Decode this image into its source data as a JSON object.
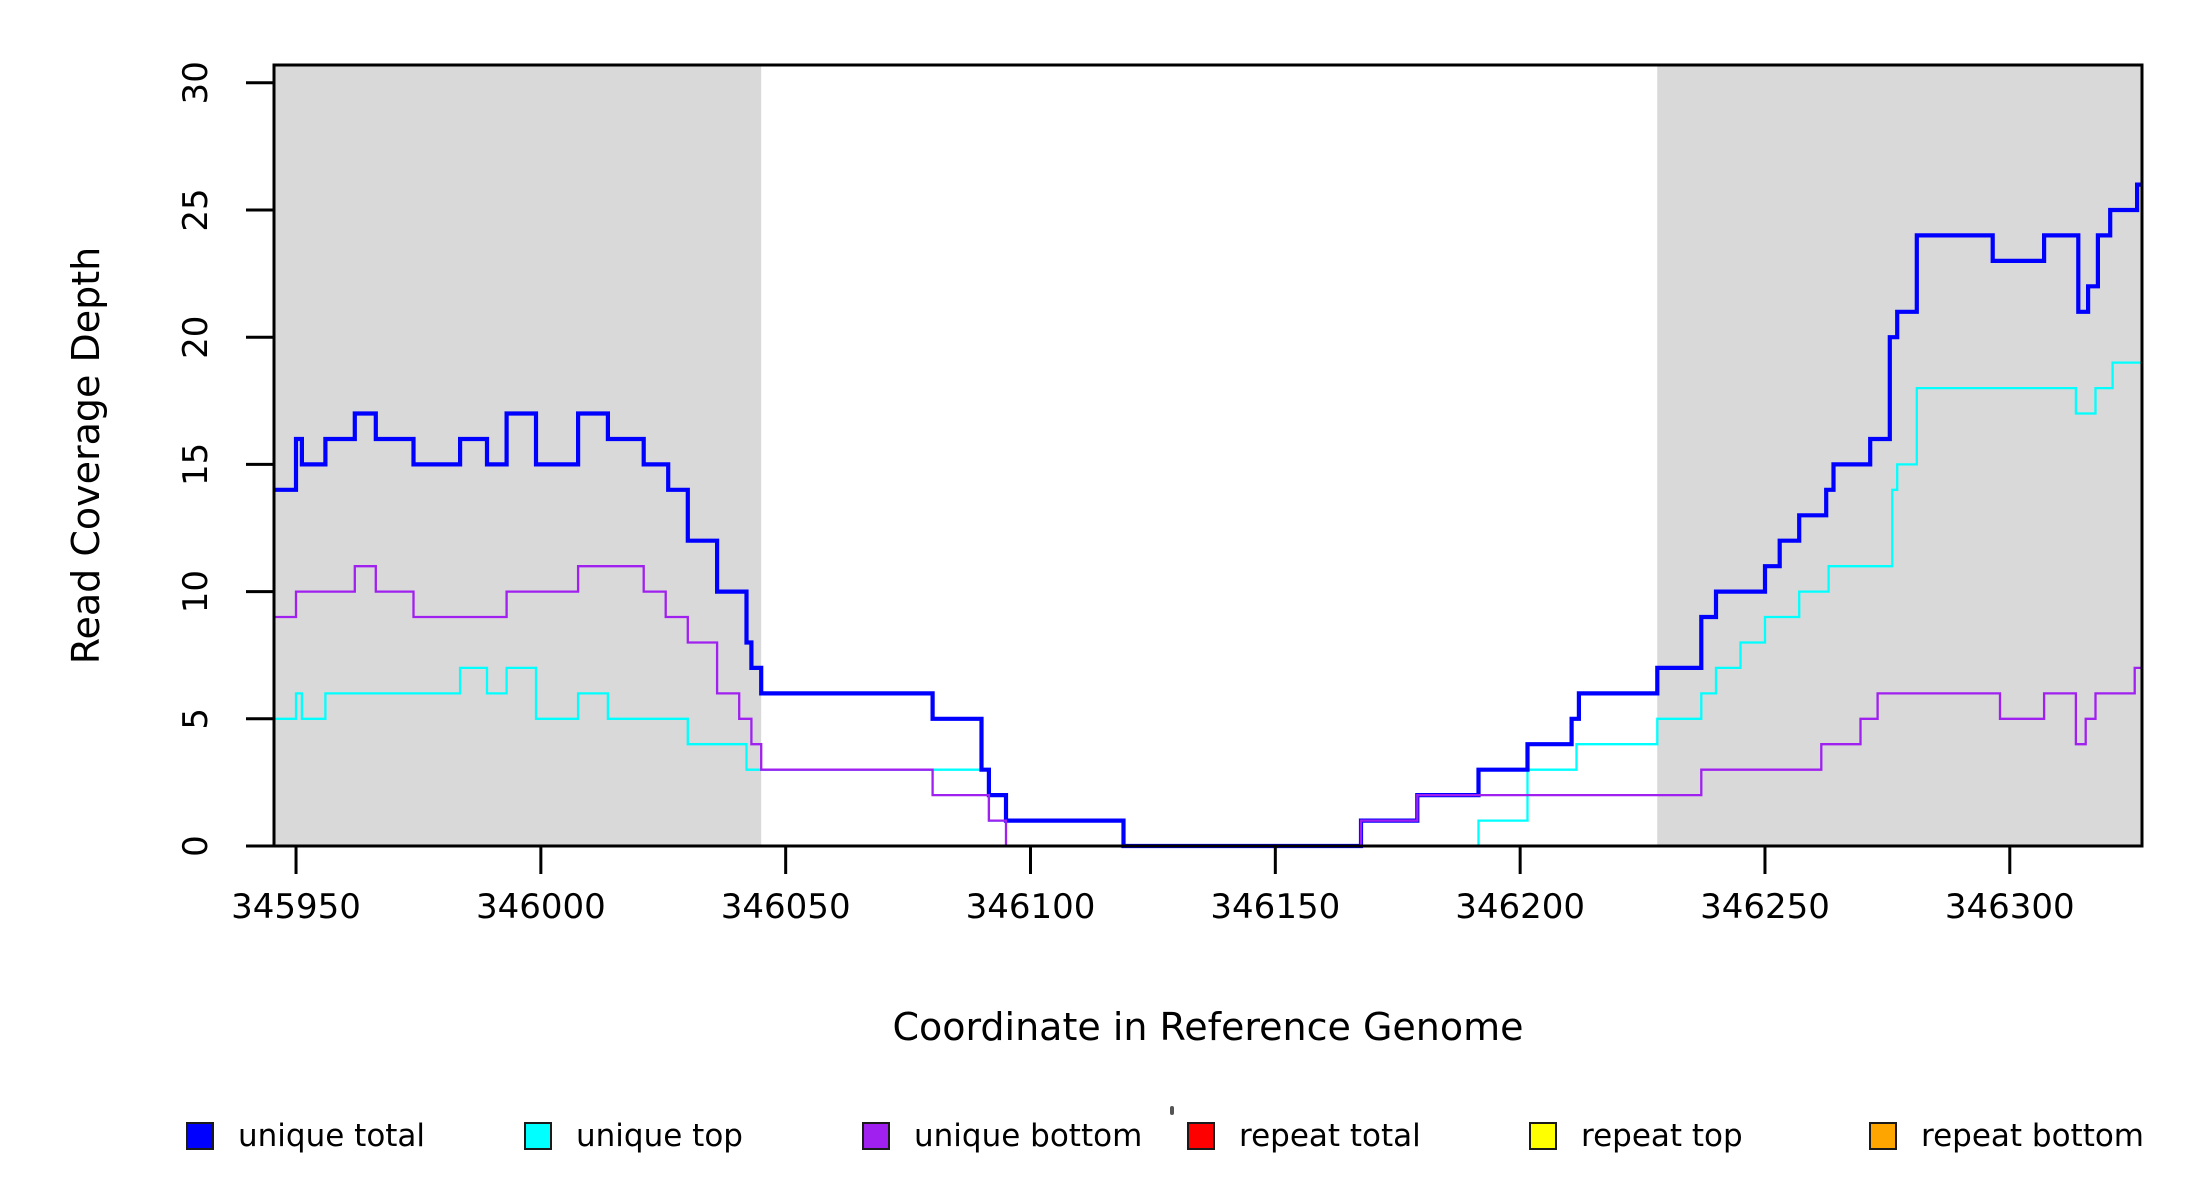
{
  "chart_data": {
    "type": "line",
    "subtype": "step",
    "title": "",
    "xlabel": "Coordinate in Reference Genome",
    "ylabel": "Read Coverage Depth",
    "xlim": [
      345945.5,
      346327
    ],
    "ylim": [
      0,
      30.7
    ],
    "xticks": [
      345950,
      346000,
      346050,
      346100,
      346150,
      346200,
      346250,
      346300
    ],
    "yticks": [
      0,
      5,
      10,
      15,
      20,
      25,
      30
    ],
    "grid": false,
    "background_color": "#ffffff",
    "axis_color": "#000000",
    "shaded_region_color": "#d9d9d9",
    "shaded_regions": [
      {
        "x0": 345945.5,
        "x1": 346045
      },
      {
        "x0": 346228,
        "x1": 346327
      }
    ],
    "draw_order": [
      "repeat total",
      "repeat top",
      "repeat bottom",
      "unique top",
      "unique total",
      "unique bottom"
    ],
    "series": [
      {
        "name": "unique total",
        "color": "#0000ff",
        "width": 4.2,
        "steps": [
          [
            345945.5,
            14
          ],
          [
            345950,
            16
          ],
          [
            345951.2,
            15
          ],
          [
            345956,
            16
          ],
          [
            345962,
            17
          ],
          [
            345966.3,
            16
          ],
          [
            345974,
            15
          ],
          [
            345983.5,
            16
          ],
          [
            345989,
            15
          ],
          [
            345993,
            17
          ],
          [
            345999,
            15
          ],
          [
            346007.6,
            17
          ],
          [
            346013.7,
            16
          ],
          [
            346021,
            15
          ],
          [
            346026,
            14
          ],
          [
            346030,
            12
          ],
          [
            346036,
            10
          ],
          [
            346042,
            8
          ],
          [
            346043,
            7
          ],
          [
            346045,
            6
          ],
          [
            346080,
            5
          ],
          [
            346090,
            3
          ],
          [
            346091.5,
            2
          ],
          [
            346095,
            1
          ],
          [
            346119,
            0
          ],
          [
            346167.5,
            1
          ],
          [
            346179,
            2
          ],
          [
            346191.5,
            3
          ],
          [
            346201.5,
            4
          ],
          [
            346210.5,
            5
          ],
          [
            346212,
            6
          ],
          [
            346228,
            7
          ],
          [
            346237,
            9
          ],
          [
            346240,
            10
          ],
          [
            346250,
            11
          ],
          [
            346253,
            12
          ],
          [
            346257,
            13
          ],
          [
            346262.5,
            14
          ],
          [
            346264,
            15
          ],
          [
            346271.5,
            16
          ],
          [
            346275.5,
            20
          ],
          [
            346277,
            21
          ],
          [
            346281,
            24
          ],
          [
            346296.5,
            23
          ],
          [
            346307,
            24
          ],
          [
            346314,
            21
          ],
          [
            346316,
            22
          ],
          [
            346318,
            24
          ],
          [
            346320.5,
            25
          ],
          [
            346326,
            26
          ],
          [
            346327,
            26
          ]
        ]
      },
      {
        "name": "unique top",
        "color": "#00ffff",
        "width": 2.3,
        "steps": [
          [
            345945.5,
            5
          ],
          [
            345950,
            6
          ],
          [
            345951.2,
            5
          ],
          [
            345956,
            6
          ],
          [
            345983.5,
            7
          ],
          [
            345989,
            6
          ],
          [
            345993,
            7
          ],
          [
            345999,
            5
          ],
          [
            346007.6,
            6
          ],
          [
            346013.7,
            5
          ],
          [
            346030,
            4
          ],
          [
            346042,
            3
          ],
          [
            346091.5,
            1
          ],
          [
            346119,
            0
          ],
          [
            346191.5,
            1
          ],
          [
            346201.5,
            3
          ],
          [
            346211.5,
            4
          ],
          [
            346228,
            5
          ],
          [
            346237,
            6
          ],
          [
            346240,
            7
          ],
          [
            346245,
            8
          ],
          [
            346250,
            9
          ],
          [
            346257,
            10
          ],
          [
            346263,
            11
          ],
          [
            346276,
            14
          ],
          [
            346277,
            15
          ],
          [
            346281,
            18
          ],
          [
            346313.5,
            17
          ],
          [
            346317.5,
            18
          ],
          [
            346321,
            19
          ],
          [
            346327,
            19
          ]
        ]
      },
      {
        "name": "unique bottom",
        "color": "#a020f0",
        "width": 2.3,
        "steps": [
          [
            345945.5,
            9
          ],
          [
            345950,
            10
          ],
          [
            345962,
            11
          ],
          [
            345966.3,
            10
          ],
          [
            345974,
            9
          ],
          [
            345993,
            10
          ],
          [
            346007.6,
            11
          ],
          [
            346021,
            10
          ],
          [
            346025.5,
            9
          ],
          [
            346030,
            8
          ],
          [
            346036,
            6
          ],
          [
            346040.5,
            5
          ],
          [
            346043,
            4
          ],
          [
            346045,
            3
          ],
          [
            346080,
            2
          ],
          [
            346091.5,
            1
          ],
          [
            346095,
            0
          ],
          [
            346167.5,
            1
          ],
          [
            346179,
            2
          ],
          [
            346237,
            3
          ],
          [
            346261.5,
            4
          ],
          [
            346269.5,
            5
          ],
          [
            346273,
            6
          ],
          [
            346298,
            5
          ],
          [
            346307,
            6
          ],
          [
            346313.5,
            4
          ],
          [
            346315.5,
            5
          ],
          [
            346317.5,
            6
          ],
          [
            346325.5,
            7
          ],
          [
            346327,
            7
          ]
        ]
      },
      {
        "name": "repeat total",
        "color": "#ff0000",
        "width": 2.3,
        "steps": [
          [
            345945.5,
            0
          ],
          [
            346327,
            0
          ]
        ]
      },
      {
        "name": "repeat top",
        "color": "#ffff00",
        "width": 2.3,
        "steps": [
          [
            345945.5,
            0
          ],
          [
            346327,
            0
          ]
        ]
      },
      {
        "name": "repeat bottom",
        "color": "#ffa500",
        "width": 3,
        "steps": [
          [
            345945.5,
            0
          ],
          [
            346327,
            0
          ]
        ]
      }
    ],
    "legend": [
      {
        "label": "unique total",
        "color": "#0000ff"
      },
      {
        "label": "unique top",
        "color": "#00ffff"
      },
      {
        "label": "unique bottom",
        "color": "#a020f0"
      },
      {
        "label": "repeat total",
        "color": "#ff0000"
      },
      {
        "label": "repeat top",
        "color": "#ffff00"
      },
      {
        "label": "repeat bottom",
        "color": "#ffa500"
      }
    ],
    "legend_position": "bottom"
  }
}
